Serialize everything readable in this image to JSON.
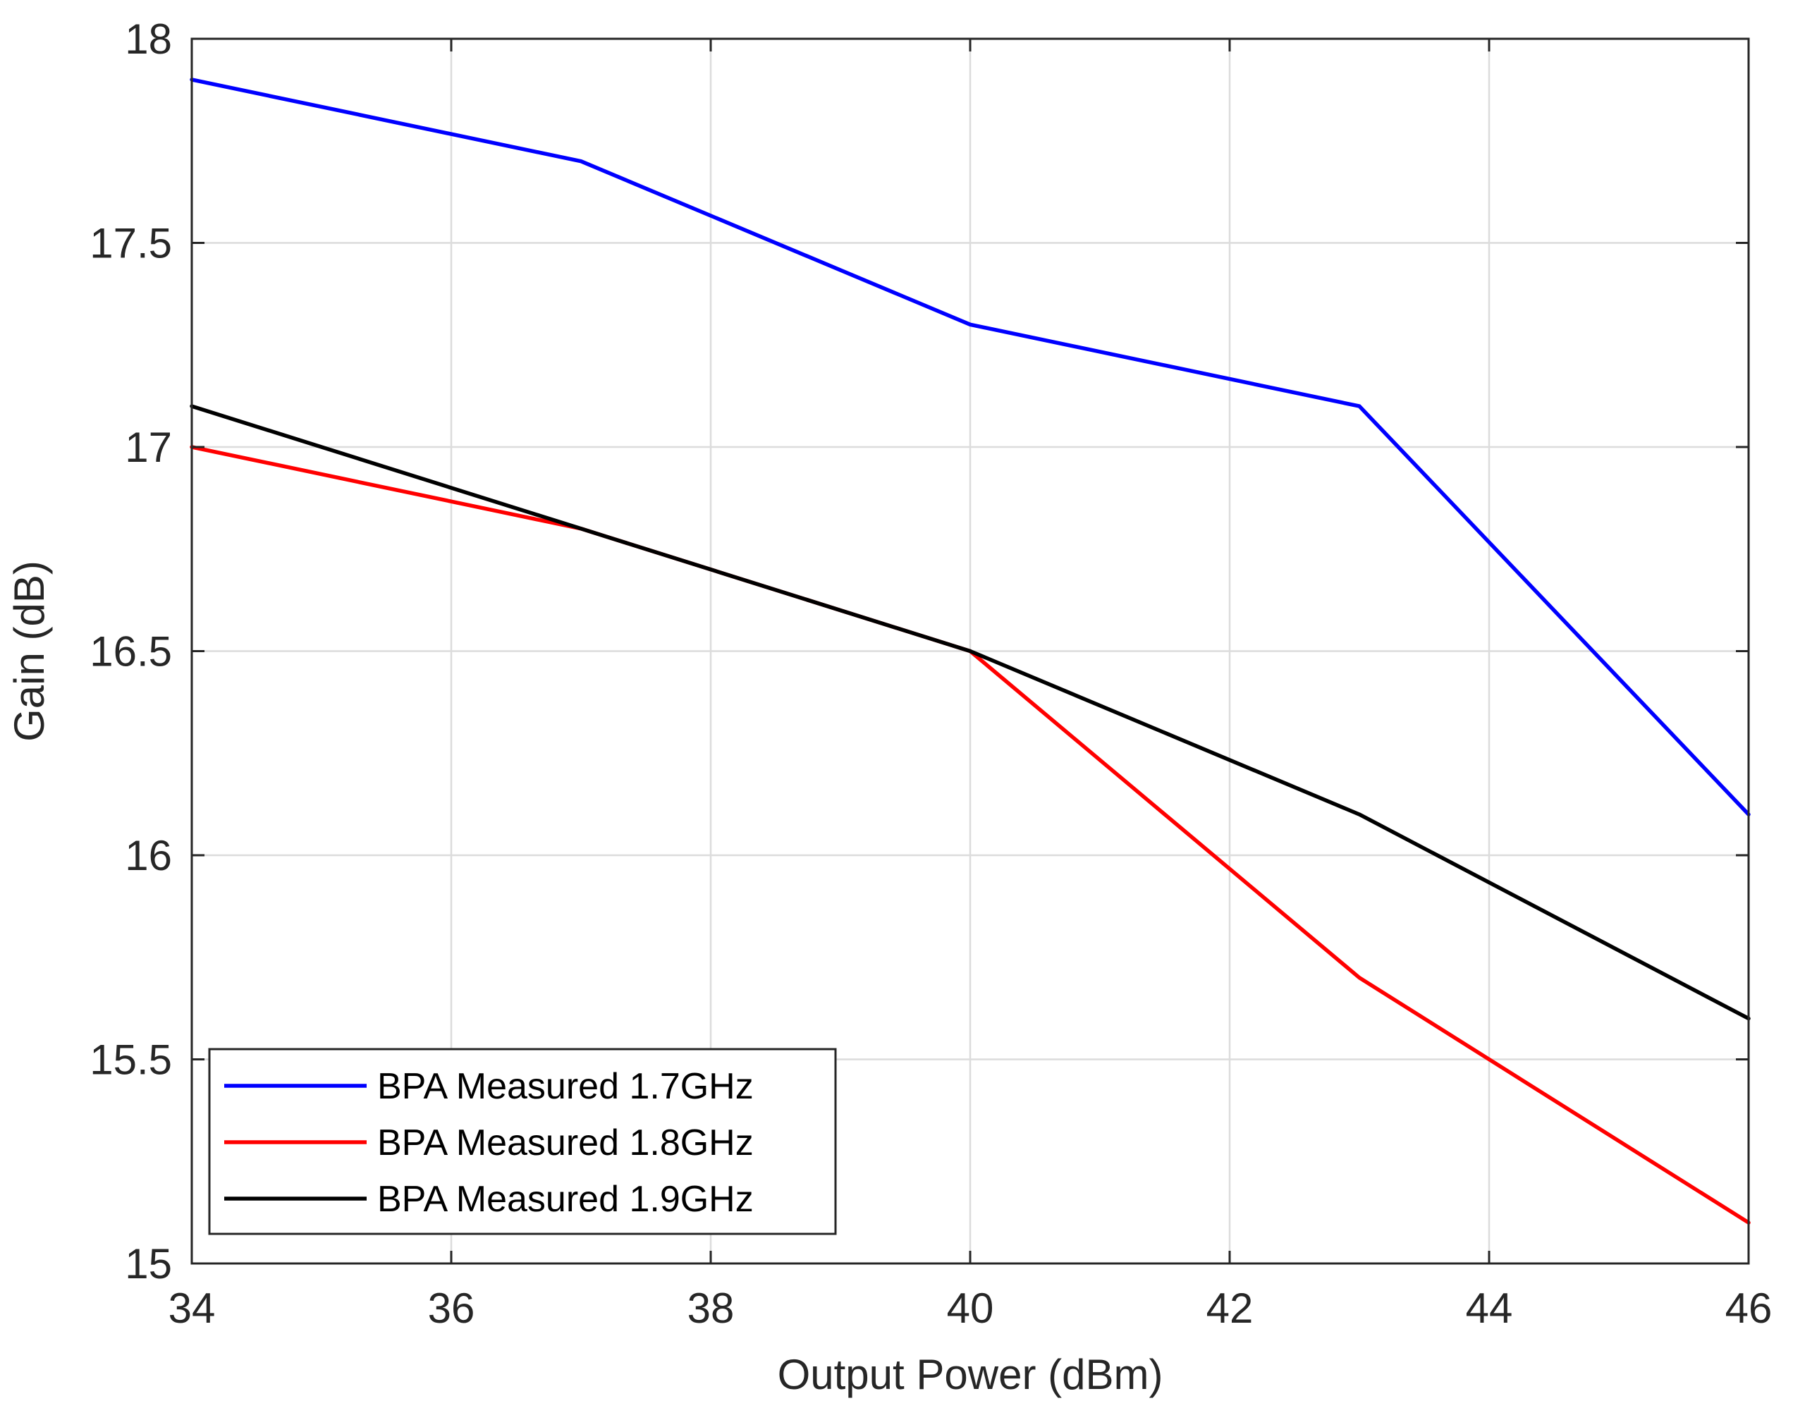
{
  "chart_data": {
    "type": "line",
    "title": "",
    "xlabel": "Output Power (dBm)",
    "ylabel": "Gain (dB)",
    "xlim": [
      34,
      46
    ],
    "ylim": [
      15,
      18
    ],
    "xticks": [
      34,
      36,
      38,
      40,
      42,
      44,
      46
    ],
    "yticks": [
      15,
      15.5,
      16,
      16.5,
      17,
      17.5,
      18
    ],
    "xtick_labels": [
      "34",
      "36",
      "38",
      "40",
      "42",
      "44",
      "46"
    ],
    "ytick_labels": [
      "15",
      "15.5",
      "16",
      "16.5",
      "17",
      "17.5",
      "18"
    ],
    "grid": true,
    "legend_position": "bottom-left",
    "x": [
      34,
      37,
      40,
      43,
      46
    ],
    "series": [
      {
        "name": "BPA Measured 1.7GHz",
        "color": "#0000ff",
        "values": [
          17.9,
          17.7,
          17.3,
          17.1,
          16.1
        ]
      },
      {
        "name": "BPA Measured 1.8GHz",
        "color": "#ff0000",
        "values": [
          17.0,
          16.8,
          16.5,
          15.7,
          15.1
        ]
      },
      {
        "name": "BPA Measured 1.9GHz",
        "color": "#000000",
        "values": [
          17.1,
          16.8,
          16.5,
          16.1,
          15.6
        ]
      }
    ]
  }
}
